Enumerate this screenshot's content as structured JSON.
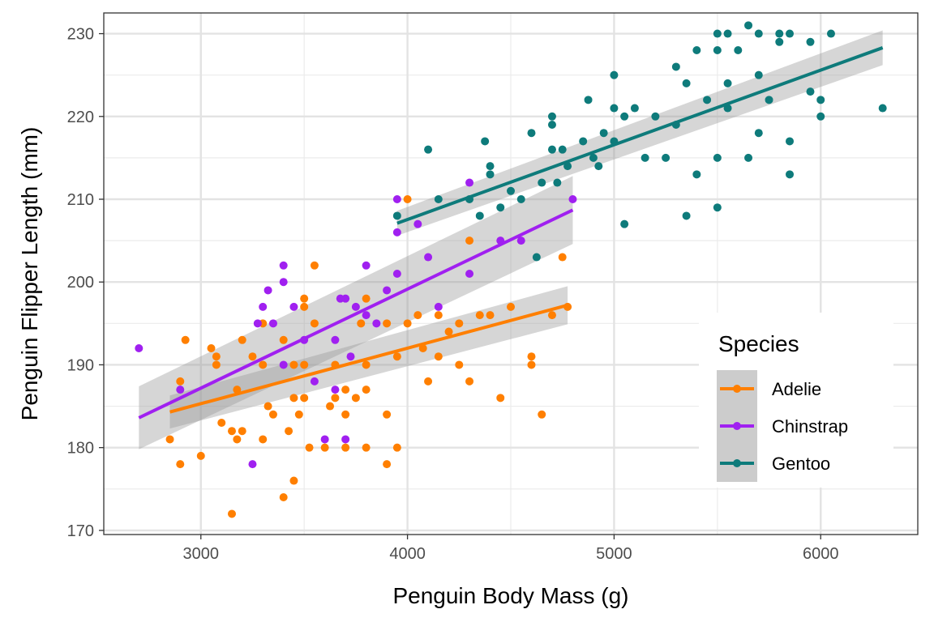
{
  "chart_data": {
    "type": "scatter",
    "title": "",
    "xlabel": "Penguin Body Mass (g)",
    "ylabel": "Penguin Flipper Length (mm)",
    "xlim": [
      2530,
      6470
    ],
    "ylim": [
      169.5,
      232.5
    ],
    "xticks": [
      3000,
      4000,
      5000,
      6000
    ],
    "yticks": [
      170,
      180,
      190,
      200,
      210,
      220,
      230
    ],
    "grid": true,
    "legend": {
      "title": "Species",
      "position": "right"
    },
    "series": [
      {
        "name": "Adelie",
        "color": "#FF7F00",
        "fit": {
          "x": [
            2850,
            4775
          ],
          "y": [
            184.3,
            197.2
          ],
          "band": [
            [
              2850,
              182.3,
              186.3
            ],
            [
              4775,
              194.9,
              199.5
            ]
          ]
        },
        "points": [
          [
            2850,
            181
          ],
          [
            2900,
            178
          ],
          [
            2900,
            188
          ],
          [
            2925,
            193
          ],
          [
            3000,
            179
          ],
          [
            3050,
            192
          ],
          [
            3075,
            191
          ],
          [
            3075,
            190
          ],
          [
            3100,
            183
          ],
          [
            3150,
            172
          ],
          [
            3150,
            182
          ],
          [
            3175,
            181
          ],
          [
            3175,
            187
          ],
          [
            3200,
            182
          ],
          [
            3200,
            193
          ],
          [
            3250,
            191
          ],
          [
            3300,
            181
          ],
          [
            3300,
            190
          ],
          [
            3300,
            195
          ],
          [
            3325,
            185
          ],
          [
            3350,
            184
          ],
          [
            3400,
            174
          ],
          [
            3400,
            193
          ],
          [
            3425,
            182
          ],
          [
            3450,
            176
          ],
          [
            3450,
            186
          ],
          [
            3450,
            190
          ],
          [
            3475,
            184
          ],
          [
            3500,
            186
          ],
          [
            3500,
            190
          ],
          [
            3500,
            197
          ],
          [
            3500,
            198
          ],
          [
            3525,
            180
          ],
          [
            3550,
            195
          ],
          [
            3550,
            202
          ],
          [
            3600,
            180
          ],
          [
            3625,
            185
          ],
          [
            3650,
            186
          ],
          [
            3650,
            190
          ],
          [
            3700,
            180
          ],
          [
            3700,
            184
          ],
          [
            3700,
            187
          ],
          [
            3750,
            186
          ],
          [
            3775,
            195
          ],
          [
            3800,
            180
          ],
          [
            3800,
            187
          ],
          [
            3800,
            190
          ],
          [
            3800,
            198
          ],
          [
            3900,
            178
          ],
          [
            3900,
            184
          ],
          [
            3900,
            195
          ],
          [
            3950,
            180
          ],
          [
            3950,
            191
          ],
          [
            4000,
            195
          ],
          [
            4000,
            210
          ],
          [
            4050,
            196
          ],
          [
            4075,
            192
          ],
          [
            4100,
            188
          ],
          [
            4150,
            191
          ],
          [
            4150,
            196
          ],
          [
            4200,
            194
          ],
          [
            4250,
            190
          ],
          [
            4250,
            195
          ],
          [
            4300,
            188
          ],
          [
            4300,
            205
          ],
          [
            4350,
            196
          ],
          [
            4400,
            196
          ],
          [
            4450,
            186
          ],
          [
            4500,
            197
          ],
          [
            4600,
            190
          ],
          [
            4600,
            191
          ],
          [
            4650,
            184
          ],
          [
            4700,
            196
          ],
          [
            4750,
            203
          ],
          [
            4775,
            197
          ]
        ]
      },
      {
        "name": "Chinstrap",
        "color": "#A020F0",
        "fit": {
          "x": [
            2700,
            4800
          ],
          "y": [
            183.6,
            208.7
          ],
          "band": [
            [
              2700,
              179.8,
              187.4
            ],
            [
              4800,
              204.6,
              212.8
            ]
          ]
        },
        "points": [
          [
            2700,
            192
          ],
          [
            2900,
            187
          ],
          [
            3250,
            178
          ],
          [
            3275,
            195
          ],
          [
            3300,
            197
          ],
          [
            3325,
            199
          ],
          [
            3350,
            195
          ],
          [
            3400,
            202
          ],
          [
            3400,
            200
          ],
          [
            3400,
            190
          ],
          [
            3450,
            197
          ],
          [
            3500,
            193
          ],
          [
            3550,
            188
          ],
          [
            3600,
            181
          ],
          [
            3650,
            187
          ],
          [
            3650,
            193
          ],
          [
            3675,
            198
          ],
          [
            3700,
            181
          ],
          [
            3700,
            198
          ],
          [
            3725,
            191
          ],
          [
            3750,
            197
          ],
          [
            3800,
            202
          ],
          [
            3800,
            196
          ],
          [
            3850,
            195
          ],
          [
            3900,
            199
          ],
          [
            3950,
            210
          ],
          [
            3950,
            206
          ],
          [
            3950,
            201
          ],
          [
            4050,
            207
          ],
          [
            4100,
            203
          ],
          [
            4150,
            197
          ],
          [
            4300,
            212
          ],
          [
            4300,
            201
          ],
          [
            4450,
            205
          ],
          [
            4550,
            205
          ],
          [
            4800,
            210
          ]
        ]
      },
      {
        "name": "Gentoo",
        "color": "#0E7B7B",
        "fit": {
          "x": [
            3950,
            6300
          ],
          "y": [
            207.1,
            228.3
          ],
          "band": [
            [
              3950,
              205.6,
              208.6
            ],
            [
              6300,
              226.2,
              230.4
            ]
          ]
        },
        "points": [
          [
            3950,
            208
          ],
          [
            4100,
            216
          ],
          [
            4150,
            210
          ],
          [
            4300,
            210
          ],
          [
            4350,
            208
          ],
          [
            4375,
            217
          ],
          [
            4400,
            213
          ],
          [
            4400,
            214
          ],
          [
            4450,
            209
          ],
          [
            4500,
            211
          ],
          [
            4550,
            210
          ],
          [
            4600,
            218
          ],
          [
            4625,
            203
          ],
          [
            4650,
            212
          ],
          [
            4700,
            216
          ],
          [
            4700,
            219
          ],
          [
            4700,
            220
          ],
          [
            4725,
            212
          ],
          [
            4750,
            216
          ],
          [
            4775,
            214
          ],
          [
            4850,
            217
          ],
          [
            4875,
            222
          ],
          [
            4900,
            215
          ],
          [
            4925,
            214
          ],
          [
            4950,
            218
          ],
          [
            5000,
            225
          ],
          [
            5000,
            221
          ],
          [
            5000,
            217
          ],
          [
            5050,
            207
          ],
          [
            5050,
            220
          ],
          [
            5100,
            221
          ],
          [
            5150,
            215
          ],
          [
            5200,
            220
          ],
          [
            5250,
            215
          ],
          [
            5300,
            226
          ],
          [
            5300,
            219
          ],
          [
            5350,
            208
          ],
          [
            5350,
            224
          ],
          [
            5400,
            228
          ],
          [
            5400,
            213
          ],
          [
            5450,
            222
          ],
          [
            5500,
            230
          ],
          [
            5500,
            228
          ],
          [
            5500,
            215
          ],
          [
            5500,
            209
          ],
          [
            5550,
            230
          ],
          [
            5550,
            224
          ],
          [
            5550,
            221
          ],
          [
            5600,
            228
          ],
          [
            5650,
            231
          ],
          [
            5650,
            215
          ],
          [
            5700,
            230
          ],
          [
            5700,
            225
          ],
          [
            5700,
            218
          ],
          [
            5750,
            222
          ],
          [
            5800,
            230
          ],
          [
            5800,
            229
          ],
          [
            5850,
            230
          ],
          [
            5850,
            217
          ],
          [
            5850,
            213
          ],
          [
            5950,
            229
          ],
          [
            5950,
            223
          ],
          [
            6000,
            222
          ],
          [
            6000,
            220
          ],
          [
            6050,
            230
          ],
          [
            6300,
            221
          ]
        ]
      }
    ]
  }
}
